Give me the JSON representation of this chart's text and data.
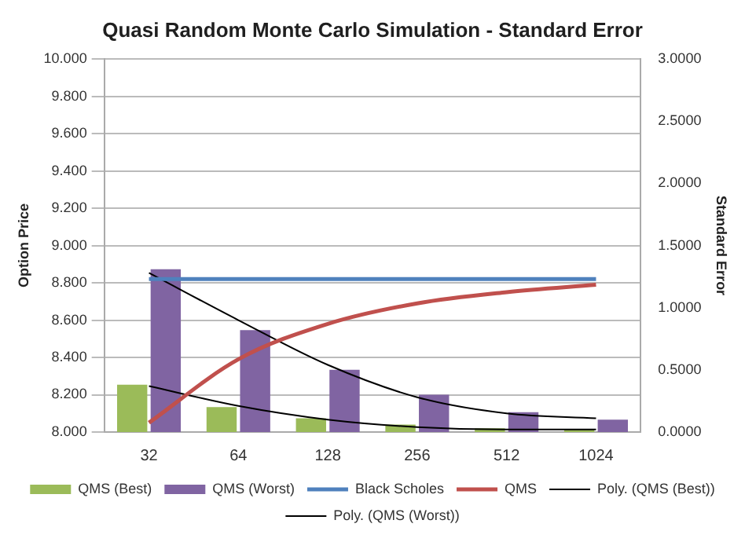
{
  "chart_data": {
    "type": "bar",
    "title": "Quasi Random Monte Carlo Simulation - Standard Error",
    "ylabel": "Option Price",
    "y2label": "Standard Error",
    "categories": [
      "32",
      "64",
      "128",
      "256",
      "512",
      "1024"
    ],
    "series": [
      {
        "name": "QMS (Best)",
        "axis": "y2",
        "color": "#9bbb59",
        "values": [
          0.38,
          0.2,
          0.11,
          0.06,
          0.03,
          0.02
        ]
      },
      {
        "name": "QMS (Worst)",
        "axis": "y2",
        "color": "#8064a2",
        "values": [
          1.31,
          0.82,
          0.5,
          0.3,
          0.16,
          0.1
        ]
      },
      {
        "name": "Black Scholes",
        "type": "line",
        "color": "#4f81bd",
        "values": [
          8.82,
          8.82,
          8.82,
          8.82,
          8.82,
          8.82
        ]
      },
      {
        "name": "QMS",
        "type": "line",
        "color": "#c0504d",
        "values": [
          8.05,
          8.39,
          8.58,
          8.69,
          8.75,
          8.79
        ]
      },
      {
        "name": "Poly. (QMS (Best))",
        "type": "line",
        "axis": "y2",
        "color": "#000000",
        "values": [
          0.37,
          0.21,
          0.1,
          0.04,
          0.02,
          0.02
        ]
      },
      {
        "name": "Poly. (QMS (Worst))",
        "type": "line",
        "axis": "y2",
        "color": "#000000",
        "values": [
          1.28,
          0.9,
          0.54,
          0.28,
          0.15,
          0.11
        ]
      }
    ],
    "ylim": [
      8,
      10
    ],
    "yticks": [
      {
        "value": 8,
        "label": "8.000"
      },
      {
        "value": 8.2,
        "label": "8.200"
      },
      {
        "value": 8.4,
        "label": "8.400"
      },
      {
        "value": 8.6,
        "label": "8.600"
      },
      {
        "value": 8.8,
        "label": "8.800"
      },
      {
        "value": 9,
        "label": "9.000"
      },
      {
        "value": 9.2,
        "label": "9.200"
      },
      {
        "value": 9.4,
        "label": "9.400"
      },
      {
        "value": 9.6,
        "label": "9.600"
      },
      {
        "value": 9.8,
        "label": "9.800"
      },
      {
        "value": 10,
        "label": "10.000"
      }
    ],
    "y2lim": [
      0,
      3
    ],
    "y2ticks": [
      {
        "value": 0,
        "label": "0.0000"
      },
      {
        "value": 0.5,
        "label": "0.5000"
      },
      {
        "value": 1,
        "label": "1.0000"
      },
      {
        "value": 1.5,
        "label": "1.5000"
      },
      {
        "value": 2,
        "label": "2.0000"
      },
      {
        "value": 2.5,
        "label": "2.5000"
      },
      {
        "value": 3,
        "label": "3.0000"
      }
    ],
    "grid": "y",
    "legend": "bottom",
    "marker": "none",
    "line_style": "solid"
  }
}
